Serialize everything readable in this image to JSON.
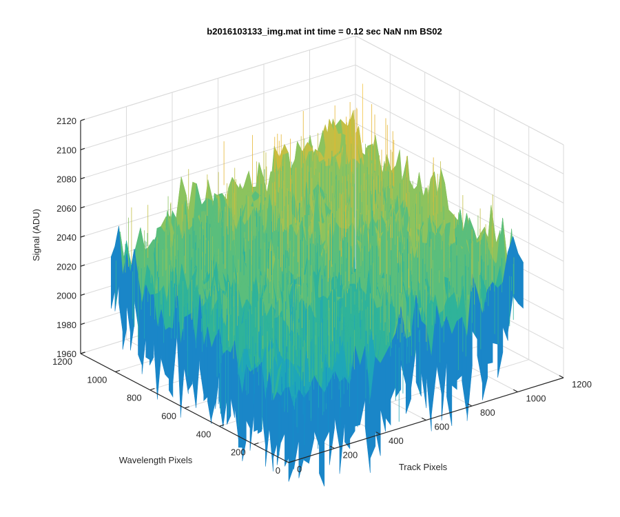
{
  "chart_data": {
    "type": "surface",
    "title": "b2016103133_img.mat int time = 0.12 sec  NaN nm BS02",
    "xlabel": "Track Pixels",
    "ylabel": "Wavelength Pixels",
    "zlabel": "Signal (ADU)",
    "xlim": [
      0,
      1200
    ],
    "ylim": [
      0,
      1200
    ],
    "zlim": [
      1960,
      2120
    ],
    "xticks": [
      "0",
      "200",
      "400",
      "600",
      "800",
      "1000",
      "1200"
    ],
    "yticks": [
      "0",
      "200",
      "400",
      "600",
      "800",
      "1000",
      "1200"
    ],
    "zticks": [
      "1960",
      "1980",
      "2000",
      "2020",
      "2040",
      "2060",
      "2080",
      "2100",
      "2120"
    ],
    "grid": true,
    "colormap": "parula",
    "colors": {
      "low": "#0072bd",
      "mid": "#20b2aa",
      "high": "#edb120"
    },
    "surface_summary": {
      "data_x_range": [
        0,
        1024
      ],
      "data_y_range": [
        0,
        1024
      ],
      "signal_near_origin": 2000,
      "signal_far_corner": 2075,
      "signal_min": 1960,
      "signal_max": 2120
    }
  }
}
